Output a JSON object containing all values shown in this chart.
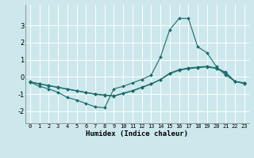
{
  "xlabel": "Humidex (Indice chaleur)",
  "background_color": "#cce8ec",
  "grid_color": "#ffffff",
  "line_color": "#1a6b6b",
  "xlim": [
    -0.5,
    23.5
  ],
  "ylim": [
    -2.7,
    4.2
  ],
  "yticks": [
    -2,
    -1,
    0,
    1,
    2,
    3
  ],
  "xticks": [
    0,
    1,
    2,
    3,
    4,
    5,
    6,
    7,
    8,
    9,
    10,
    11,
    12,
    13,
    14,
    15,
    16,
    17,
    18,
    19,
    20,
    21,
    22,
    23
  ],
  "line1_x": [
    0,
    1,
    2,
    3,
    4,
    5,
    6,
    7,
    8,
    9,
    10,
    11,
    12,
    13,
    14,
    15,
    16,
    17,
    18,
    19,
    20,
    21,
    22,
    23
  ],
  "line1_y": [
    -0.3,
    -0.55,
    -0.7,
    -0.9,
    -1.2,
    -1.35,
    -1.55,
    -1.75,
    -1.8,
    -0.7,
    -0.55,
    -0.35,
    -0.15,
    0.1,
    1.15,
    2.75,
    3.4,
    3.4,
    1.75,
    1.4,
    0.6,
    0.1,
    -0.25,
    -0.4
  ],
  "line2_x": [
    0,
    1,
    2,
    3,
    4,
    5,
    6,
    7,
    8,
    9,
    10,
    11,
    12,
    13,
    14,
    15,
    16,
    17,
    18,
    19,
    20,
    21,
    22,
    23
  ],
  "line2_y": [
    -0.3,
    -0.42,
    -0.52,
    -0.62,
    -0.72,
    -0.82,
    -0.92,
    -1.02,
    -1.07,
    -1.12,
    -0.97,
    -0.82,
    -0.62,
    -0.42,
    -0.17,
    0.18,
    0.38,
    0.48,
    0.53,
    0.58,
    0.48,
    0.23,
    -0.28,
    -0.37
  ],
  "line3_x": [
    0,
    1,
    2,
    3,
    4,
    5,
    6,
    7,
    8,
    9,
    10,
    11,
    12,
    13,
    14,
    15,
    16,
    17,
    18,
    19,
    20,
    21,
    22,
    23
  ],
  "line3_y": [
    -0.28,
    -0.4,
    -0.5,
    -0.6,
    -0.7,
    -0.8,
    -0.9,
    -1.0,
    -1.05,
    -1.1,
    -0.95,
    -0.8,
    -0.6,
    -0.4,
    -0.15,
    0.22,
    0.42,
    0.52,
    0.57,
    0.62,
    0.52,
    0.27,
    -0.26,
    -0.35
  ]
}
